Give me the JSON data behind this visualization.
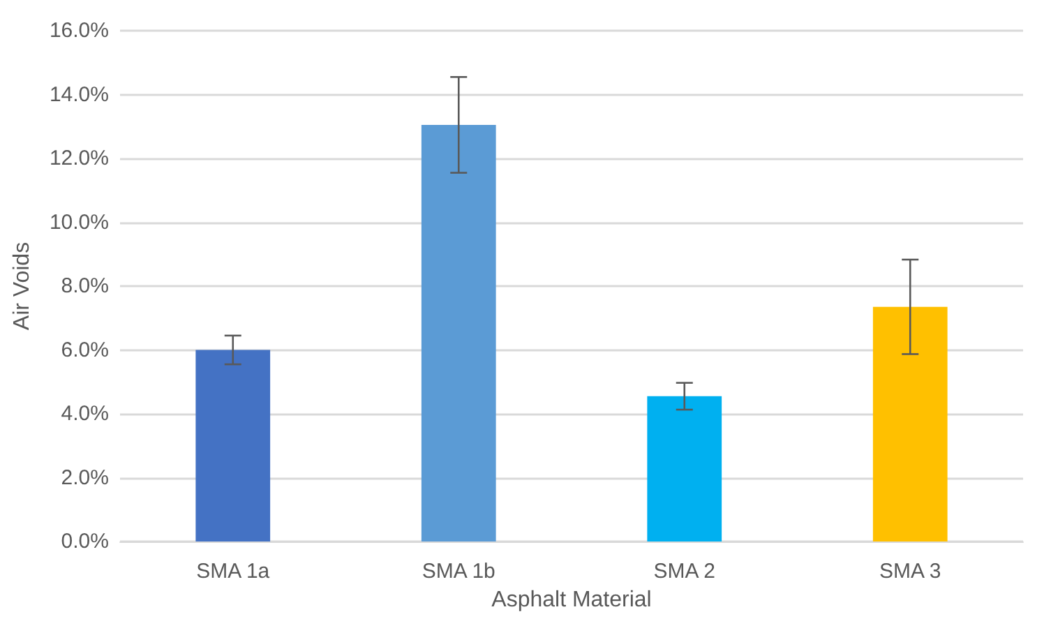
{
  "chart_data": {
    "type": "bar",
    "xlabel": "Asphalt Material",
    "ylabel": "Air Voids",
    "categories": [
      "SMA 1a",
      "SMA 1b",
      "SMA 2",
      "SMA 3"
    ],
    "values": [
      6.0,
      13.05,
      4.55,
      7.35
    ],
    "errors": [
      0.45,
      1.5,
      0.42,
      1.48
    ],
    "colors": [
      "#4472c4",
      "#5b9bd5",
      "#00b0f0",
      "#ffc000"
    ],
    "ylim": [
      0,
      16
    ],
    "yticks": [
      {
        "value": 0,
        "label": "0.0%"
      },
      {
        "value": 2,
        "label": "2.0%"
      },
      {
        "value": 4,
        "label": "4.0%"
      },
      {
        "value": 6,
        "label": "6.0%"
      },
      {
        "value": 8,
        "label": "8.0%"
      },
      {
        "value": 10,
        "label": "10.0%"
      },
      {
        "value": 12,
        "label": "12.0%"
      },
      {
        "value": 14,
        "label": "14.0%"
      },
      {
        "value": 16,
        "label": "16.0%"
      }
    ],
    "grid": "y"
  }
}
